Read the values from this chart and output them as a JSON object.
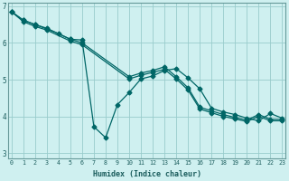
{
  "xlabel": "Humidex (Indice chaleur)",
  "bg_color": "#cff0f0",
  "line_color": "#006666",
  "grid_color": "#99cccc",
  "ylim": [
    2.85,
    7.1
  ],
  "xlim": [
    -0.3,
    23.3
  ],
  "line1_x": [
    0,
    1,
    2,
    3,
    5,
    6,
    10,
    11,
    12,
    13,
    14,
    15,
    16,
    17,
    18,
    19,
    20,
    21,
    22,
    23
  ],
  "line1_y": [
    6.85,
    6.62,
    6.5,
    6.4,
    6.1,
    6.0,
    5.08,
    5.18,
    5.25,
    5.35,
    5.08,
    4.78,
    4.25,
    4.15,
    4.05,
    3.97,
    3.9,
    4.05,
    3.92,
    3.92
  ],
  "line2_x": [
    0,
    1,
    2,
    3,
    5,
    6,
    10,
    11,
    12,
    13,
    14,
    15,
    16,
    17,
    18,
    19,
    20,
    21,
    22,
    23
  ],
  "line2_y": [
    6.85,
    6.58,
    6.45,
    6.35,
    6.05,
    5.95,
    5.02,
    5.12,
    5.2,
    5.28,
    5.02,
    4.72,
    4.2,
    4.1,
    4.0,
    3.93,
    3.86,
    4.0,
    3.88,
    3.88
  ],
  "line3_x": [
    0,
    1,
    2,
    3,
    4,
    5,
    6,
    7,
    8,
    9,
    10,
    11,
    12,
    13,
    14,
    15,
    16,
    17,
    18,
    19,
    20,
    21,
    22,
    23
  ],
  "line3_y": [
    6.85,
    6.62,
    6.5,
    6.38,
    6.25,
    6.1,
    6.08,
    3.72,
    3.42,
    4.32,
    4.65,
    5.02,
    5.1,
    5.25,
    5.3,
    5.05,
    4.75,
    4.22,
    4.12,
    4.05,
    3.95,
    3.88,
    4.08,
    3.95
  ],
  "line1_markers_x": [
    0,
    1,
    2,
    3,
    5,
    6,
    10,
    11,
    13,
    14,
    15,
    16,
    18,
    19,
    20,
    21,
    22,
    23
  ],
  "line2_markers_x": [
    10,
    11,
    13,
    14,
    16,
    18,
    19,
    20,
    21,
    22,
    23
  ],
  "line3_markers_x": [
    0,
    1,
    2,
    3,
    4,
    5,
    6,
    7,
    8,
    9,
    10,
    13,
    14,
    16,
    17,
    18,
    19,
    20,
    21,
    22,
    23
  ],
  "yticks": [
    3,
    4,
    5,
    6,
    7
  ],
  "xticks": [
    0,
    1,
    2,
    3,
    4,
    5,
    6,
    7,
    8,
    9,
    10,
    11,
    12,
    13,
    14,
    15,
    16,
    17,
    18,
    19,
    20,
    21,
    22,
    23
  ]
}
